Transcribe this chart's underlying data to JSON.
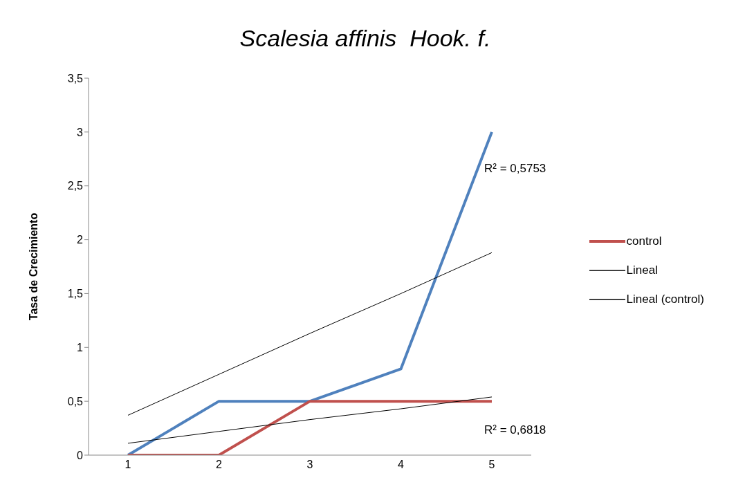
{
  "chart_data": {
    "type": "line",
    "title": "Scalesia affinis  Hook. f.",
    "ylabel": "Tasa de Crecimiento",
    "categories": [
      "1",
      "2",
      "3",
      "4",
      "5"
    ],
    "series": [
      {
        "color": "#4f81bd",
        "values": [
          0,
          0.5,
          0.5,
          0.8,
          3
        ]
      },
      {
        "name": "control",
        "color": "#c0504d",
        "values": [
          0,
          0,
          0.5,
          0.5,
          0.5
        ]
      },
      {
        "name": "Lineal",
        "color": "#000000",
        "values": [
          0.37,
          0.75,
          1.13,
          1.5,
          1.88
        ]
      },
      {
        "name": "Lineal (control)",
        "color": "#000000",
        "values": [
          0.11,
          0.22,
          0.33,
          0.43,
          0.54
        ]
      }
    ],
    "ylim": [
      0,
      3.5
    ],
    "yticks": [
      0,
      {
        "value": 0.5,
        "label": "0,5"
      },
      1,
      {
        "value": 1.5,
        "label": "1,5"
      },
      2,
      {
        "value": 2.5,
        "label": "2,5"
      },
      3,
      {
        "value": 3.5,
        "label": "3,5"
      }
    ],
    "annotations": [
      "R² = 0,5753",
      "R² = 0,6818"
    ],
    "grid": false,
    "legend": "right",
    "marker": "none"
  }
}
